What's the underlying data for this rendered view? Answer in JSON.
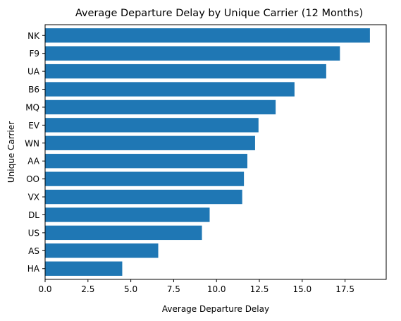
{
  "chart_data": {
    "type": "bar",
    "orientation": "horizontal",
    "title": "Average Departure Delay by Unique Carrier (12 Months)",
    "xlabel": "Average Departure Delay",
    "ylabel": "Unique Carrier",
    "categories": [
      "NK",
      "F9",
      "UA",
      "B6",
      "MQ",
      "EV",
      "WN",
      "AA",
      "OO",
      "VX",
      "DL",
      "US",
      "AS",
      "HA"
    ],
    "values": [
      18.95,
      17.2,
      16.4,
      14.55,
      13.45,
      12.45,
      12.25,
      11.8,
      11.6,
      11.5,
      9.6,
      9.15,
      6.6,
      4.5
    ],
    "xlim": [
      0,
      19.9
    ],
    "xticks": [
      0.0,
      2.5,
      5.0,
      7.5,
      10.0,
      12.5,
      15.0,
      17.5
    ],
    "xtick_labels": [
      "0.0",
      "2.5",
      "5.0",
      "7.5",
      "10.0",
      "12.5",
      "15.0",
      "17.5"
    ],
    "bar_color": "#1f77b4",
    "grid": false,
    "legend": "none"
  }
}
